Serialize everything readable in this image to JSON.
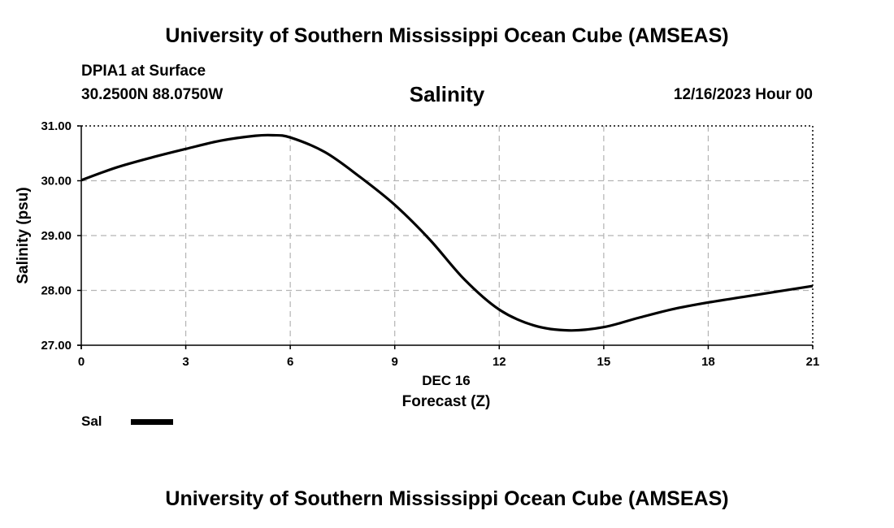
{
  "header": {
    "title": "University of Southern Mississippi Ocean Cube (AMSEAS)",
    "station": "DPIA1 at Surface",
    "coords": "30.2500N  88.0750W",
    "datetime": "12/16/2023 Hour 00"
  },
  "footer": {
    "title": "University of Southern Mississippi Ocean Cube (AMSEAS)"
  },
  "chart_data": {
    "type": "line",
    "title": "Salinity",
    "xlabel": "Forecast (Z)",
    "xlabel_date": "DEC 16",
    "ylabel": "Salinity (psu)",
    "xlim": [
      0,
      21
    ],
    "ylim": [
      27,
      31
    ],
    "xticks": [
      0,
      3,
      6,
      9,
      12,
      15,
      18,
      21
    ],
    "xtick_labels": [
      "0",
      "3",
      "6",
      "9",
      "12",
      "15",
      "18",
      "21"
    ],
    "yticks": [
      27,
      28,
      29,
      30,
      31
    ],
    "ytick_labels": [
      "27.00",
      "28.00",
      "29.00",
      "30.00",
      "31.00"
    ],
    "grid": true,
    "legend": "bottom-left",
    "series": [
      {
        "name": "Sal",
        "color": "#000000",
        "x": [
          0,
          1,
          2,
          3,
          4,
          5,
          5.5,
          6,
          7,
          8,
          9,
          10,
          11,
          12,
          13,
          14,
          15,
          16,
          17,
          18,
          19,
          20,
          21
        ],
        "values": [
          30.01,
          30.24,
          30.42,
          30.58,
          30.73,
          30.82,
          30.83,
          30.79,
          30.52,
          30.07,
          29.56,
          28.93,
          28.2,
          27.65,
          27.36,
          27.27,
          27.33,
          27.5,
          27.66,
          27.78,
          27.88,
          27.98,
          28.08
        ]
      }
    ]
  }
}
